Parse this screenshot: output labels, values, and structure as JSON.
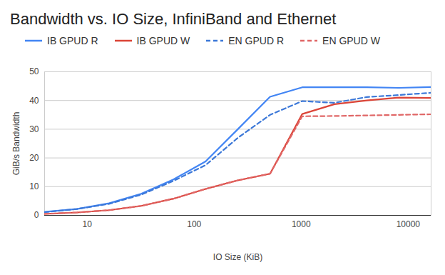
{
  "chart_data": {
    "type": "line",
    "title": "Bandwidth vs. IO Size, InfiniBand and Ethernet",
    "x_label": "IO Size (KiB)",
    "y_label": "GiB/s Bandwidth",
    "x": [
      4,
      8,
      16,
      32,
      64,
      128,
      256,
      512,
      1024,
      2048,
      4096,
      8192,
      16384
    ],
    "series": [
      {
        "name": "IB GPUD R",
        "color": "#4285f4",
        "line_style": "solid",
        "values": [
          1.2,
          2.2,
          4.2,
          7.5,
          12.5,
          18.8,
          30,
          41.3,
          44.6,
          44.6,
          44.6,
          44.4,
          44.7
        ]
      },
      {
        "name": "IB GPUD W",
        "color": "#db4437",
        "line_style": "solid",
        "values": [
          0.5,
          1.0,
          1.8,
          3.3,
          5.8,
          9.2,
          12.2,
          14.5,
          35.3,
          38.7,
          40,
          41,
          40.9
        ]
      },
      {
        "name": "EN GPUD R",
        "color": "#3c78d8",
        "line_style": "dashed",
        "values": [
          1.1,
          2.2,
          4.0,
          7.2,
          12,
          17.5,
          27,
          35,
          39.8,
          39.2,
          41.2,
          41.9,
          42.7
        ]
      },
      {
        "name": "EN GPUD W",
        "color": "#e06666",
        "line_style": "dashed",
        "values": [
          0.5,
          1.0,
          1.8,
          3.3,
          5.8,
          9.2,
          12.2,
          14.5,
          34.5,
          34.6,
          34.8,
          35,
          35.2
        ]
      }
    ],
    "log": "x",
    "xlim": [
      4,
      16384
    ],
    "xticks": [
      10,
      100,
      1000,
      10000
    ],
    "ylim": [
      0,
      50
    ],
    "yticks": [
      0,
      10,
      20,
      30,
      40,
      50
    ],
    "grid": true,
    "legend": "top"
  }
}
